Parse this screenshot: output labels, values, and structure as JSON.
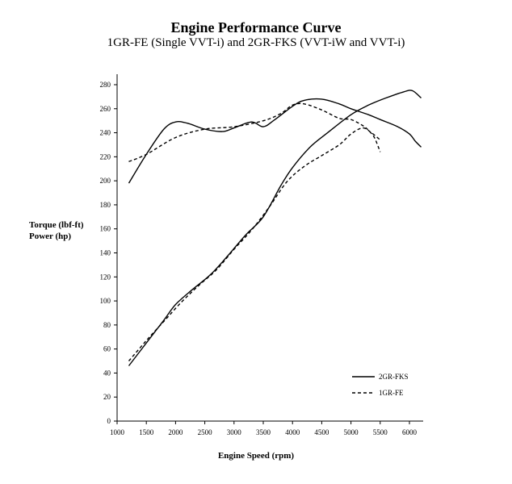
{
  "chart_data": {
    "type": "line",
    "title": "Engine Performance Curve",
    "subtitle": "1GR-FE (Single VVT-i) and 2GR-FKS (VVT-iW and VVT-i)",
    "ylabel_lines": [
      "Torque (lbf-ft)",
      "Power (hp)"
    ],
    "xlabel": "Engine Speed (rpm)",
    "xlim": [
      1000,
      6500
    ],
    "ylim": [
      0,
      280
    ],
    "x_ticks": [
      1000,
      1500,
      2000,
      2500,
      3000,
      3500,
      4000,
      4500,
      5000,
      5500,
      6000
    ],
    "y_ticks": [
      0,
      20,
      40,
      60,
      80,
      100,
      120,
      140,
      160,
      180,
      200,
      220,
      240,
      260,
      280
    ],
    "grid": false,
    "legend_position": "bottom-right",
    "series": [
      {
        "name": "2GR-FKS",
        "style": "solid",
        "color": "#000000",
        "curves": [
          {
            "x": [
              1200,
              1500,
              1800,
              2000,
              2200,
              2500,
              2800,
              3000,
              3300,
              3500,
              3700,
              4000,
              4200,
              4500,
              4800,
              5000,
              5300,
              5500,
              5800,
              6000,
              6100,
              6200
            ],
            "y": [
              198,
              222,
              243,
              249,
              248,
              243,
              241,
              244,
              249,
              245,
              251,
              262,
              267,
              268,
              264,
              260,
              255,
              251,
              245,
              239,
              233,
              228
            ]
          },
          {
            "x": [
              1200,
              1500,
              1800,
              2000,
              2300,
              2600,
              2900,
              3200,
              3500,
              3800,
              4000,
              4300,
              4600,
              5000,
              5300,
              5600,
              5900,
              6050,
              6200
            ],
            "y": [
              46,
              65,
              84,
              97,
              110,
              122,
              138,
              155,
              170,
              196,
              211,
              228,
              240,
              255,
              263,
              269,
              274,
              275,
              269
            ]
          }
        ]
      },
      {
        "name": "1GR-FE",
        "style": "dashed",
        "color": "#000000",
        "curves": [
          {
            "x": [
              1200,
              1500,
              2000,
              2500,
              3000,
              3500,
              3800,
              4000,
              4200,
              4500,
              4800,
              5000,
              5200,
              5300,
              5400,
              5500
            ],
            "y": [
              216,
              222,
              236,
              243,
              245,
              250,
              256,
              263,
              264,
              259,
              252,
              251,
              246,
              242,
              236,
              224
            ]
          },
          {
            "x": [
              1200,
              1500,
              1800,
              2100,
              2400,
              2700,
              3000,
              3300,
              3600,
              3900,
              4200,
              4500,
              4800,
              5000,
              5200,
              5350,
              5500
            ],
            "y": [
              50,
              67,
              83,
              99,
              113,
              126,
              143,
              159,
              178,
              199,
              212,
              221,
              230,
              239,
              244,
              240,
              234
            ]
          }
        ]
      }
    ]
  }
}
